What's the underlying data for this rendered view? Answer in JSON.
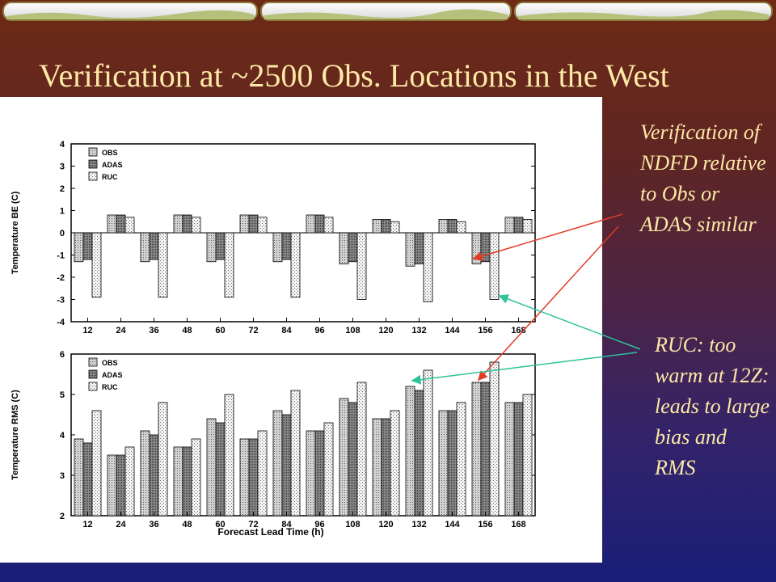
{
  "slide": {
    "title": "Verification at ~2500 Obs. Locations in the West",
    "note1": "Verification of NDFD relative to Obs or ADAS similar",
    "note2": "RUC: too warm at 12Z: leads to large bias and RMS"
  },
  "colors": {
    "background_top": "#6e2a14",
    "background_bottom": "#191e78",
    "text": "#fde9a6",
    "arrow_red": "#e23b24",
    "arrow_teal": "#2fc39a",
    "bar_obs": "#bdbdbd",
    "bar_adas": "#7a7a7a",
    "bar_ruc": "#e4e4e4"
  },
  "chart_data": [
    {
      "type": "bar",
      "ylabel": "Temperature BE (C)",
      "xlabel": "",
      "ylim": [
        -4,
        4
      ],
      "yticks": [
        -4,
        -3,
        -2,
        -1,
        0,
        1,
        2,
        3,
        4
      ],
      "legend_position": "top-left",
      "categories": [
        "12",
        "24",
        "36",
        "48",
        "60",
        "72",
        "84",
        "96",
        "108",
        "120",
        "132",
        "144",
        "156",
        "168"
      ],
      "series": [
        {
          "name": "OBS",
          "values": [
            -1.3,
            0.8,
            -1.3,
            0.8,
            -1.3,
            0.8,
            -1.3,
            0.8,
            -1.4,
            0.6,
            -1.5,
            0.6,
            -1.4,
            0.7
          ]
        },
        {
          "name": "ADAS",
          "values": [
            -1.2,
            0.8,
            -1.2,
            0.8,
            -1.2,
            0.8,
            -1.2,
            0.8,
            -1.3,
            0.6,
            -1.4,
            0.6,
            -1.3,
            0.7
          ]
        },
        {
          "name": "RUC",
          "values": [
            -2.9,
            0.7,
            -2.9,
            0.7,
            -2.9,
            0.7,
            -2.9,
            0.7,
            -3.0,
            0.5,
            -3.1,
            0.5,
            -3.0,
            0.6
          ]
        }
      ]
    },
    {
      "type": "bar",
      "ylabel": "Temperature RMS (C)",
      "xlabel": "Forecast Lead Time (h)",
      "ylim": [
        2,
        6
      ],
      "yticks": [
        2,
        3,
        4,
        5,
        6
      ],
      "legend_position": "top-left",
      "categories": [
        "12",
        "24",
        "36",
        "48",
        "60",
        "72",
        "84",
        "96",
        "108",
        "120",
        "132",
        "144",
        "156",
        "168"
      ],
      "series": [
        {
          "name": "OBS",
          "values": [
            3.9,
            3.5,
            4.1,
            3.7,
            4.4,
            3.9,
            4.6,
            4.1,
            4.9,
            4.4,
            5.2,
            4.6,
            5.3,
            4.8
          ]
        },
        {
          "name": "ADAS",
          "values": [
            3.8,
            3.5,
            4.0,
            3.7,
            4.3,
            3.9,
            4.5,
            4.1,
            4.8,
            4.4,
            5.1,
            4.6,
            5.3,
            4.8
          ]
        },
        {
          "name": "RUC",
          "values": [
            4.6,
            3.7,
            4.8,
            3.9,
            5.0,
            4.1,
            5.1,
            4.3,
            5.3,
            4.6,
            5.6,
            4.8,
            5.8,
            5.0
          ]
        }
      ]
    }
  ]
}
